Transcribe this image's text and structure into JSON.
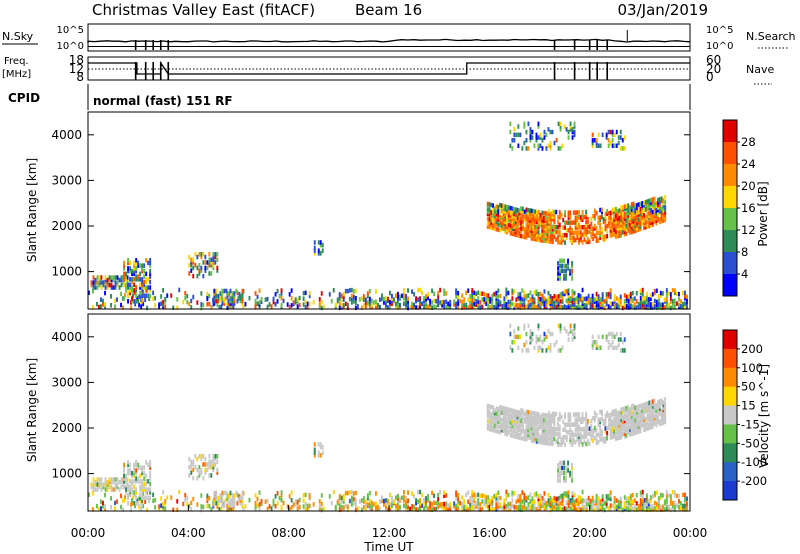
{
  "header": {
    "title": "Christmas Valley East (fitACF)",
    "beam": "Beam 16",
    "date": "03/Jan/2019"
  },
  "status": {
    "nsky_label": "N.Sky",
    "nsearch_label": "N.Search",
    "nsky_ticks": [
      "10^5",
      "10^0"
    ],
    "nsearch_ticks": [
      "10^5",
      "10^0"
    ],
    "freq_label_1": "Freq.",
    "freq_label_2": "[MHz]",
    "freq_ticks": [
      "18",
      "12",
      "8"
    ],
    "nave_label": "Nave",
    "nave_ticks": [
      "60",
      "20",
      "0"
    ],
    "cpid_label": "CPID",
    "cpid_value": "normal (fast) 151 RF"
  },
  "chart_data": [
    {
      "type": "heatmap",
      "name": "power",
      "ylabel": "Slant Range [km]",
      "xlabel": "Time UT",
      "ylim": [
        180,
        4500
      ],
      "yticks": [
        "1000",
        "2000",
        "3000",
        "4000"
      ],
      "colorbar_label": "Power [dB]",
      "colorbar_ticks": [
        "4",
        "8",
        "12",
        "16",
        "20",
        "24",
        "28"
      ],
      "colors": [
        "#0000ff",
        "#2a4fd0",
        "#2e8b57",
        "#66c04a",
        "#ffd700",
        "#ff8c00",
        "#ff5000",
        "#e00000"
      ]
    },
    {
      "type": "heatmap",
      "name": "velocity",
      "ylabel": "Slant Range [km]",
      "ylim": [
        180,
        4500
      ],
      "yticks": [
        "1000",
        "2000",
        "3000",
        "4000"
      ],
      "colorbar_label": "Velocity [m s^-1]",
      "colorbar_ticks": [
        "200",
        "100",
        "50",
        "15",
        "-15",
        "-50",
        "-100",
        "-200"
      ],
      "colors": [
        "#1a3ad0",
        "#2a60c8",
        "#2e8b57",
        "#66c04a",
        "#c8c8c8",
        "#ffd700",
        "#ff8c00",
        "#ff5000",
        "#e00000"
      ]
    }
  ],
  "time_axis": {
    "ticks": [
      "00:00",
      "04:00",
      "08:00",
      "12:00",
      "16:00",
      "20:00",
      "00:00"
    ],
    "label": "Time UT"
  }
}
